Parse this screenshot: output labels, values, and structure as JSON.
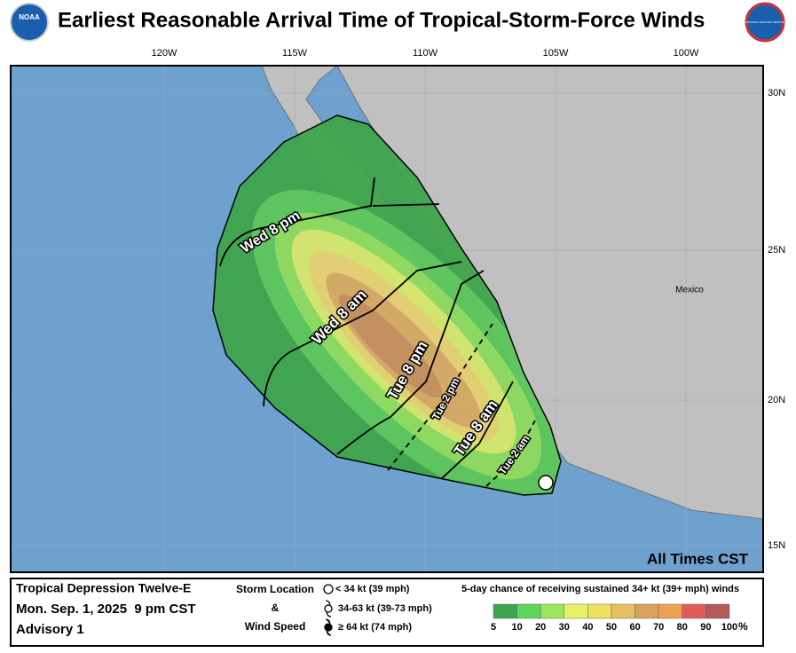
{
  "header": {
    "left_logo": "NOAA",
    "title": "Earliest Reasonable Arrival Time of Tropical-Storm-Force Winds",
    "right_logo": "NATIONAL WEATHER SERVICE"
  },
  "map": {
    "longitude_labels": [
      "120W",
      "115W",
      "110W",
      "105W",
      "100W"
    ],
    "latitude_labels": [
      "30N",
      "25N",
      "20N",
      "15N"
    ],
    "country_label": "Mexico",
    "time_labels": [
      "Wed 8 pm",
      "Wed 8 am",
      "Tue 8 pm",
      "Tue 2 pm",
      "Tue 8 am",
      "Tue 2 am"
    ],
    "time_zone_note": "All Times CST"
  },
  "legend": {
    "storm_name": "Tropical Depression Twelve-E",
    "advisory_time": "Mon. Sep. 1, 2025  9 pm CST",
    "advisory_number": "Advisory 1",
    "storm_location_title": [
      "Storm Location",
      "&",
      "Wind Speed"
    ],
    "wind_categories": [
      "< 34 kt (39 mph)",
      "34-63 kt (39-73 mph)",
      "≥ 64 kt (74 mph)"
    ],
    "probability_title": "5-day chance of receiving sustained 34+ kt (39+ mph) winds",
    "probability_scale": [
      5,
      10,
      20,
      30,
      40,
      50,
      60,
      70,
      80,
      90,
      100
    ],
    "percent_sign": "%"
  }
}
